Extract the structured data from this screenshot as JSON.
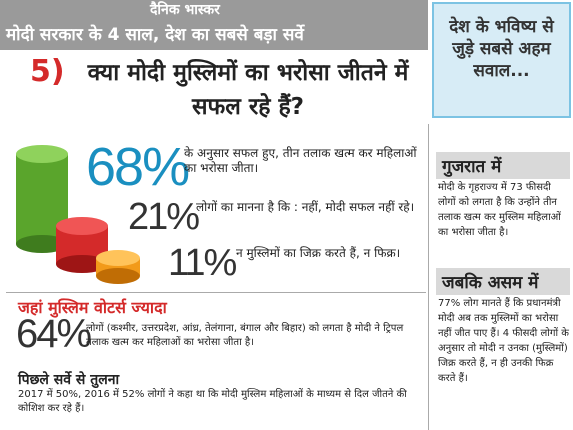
{
  "header": {
    "logo": "दैनिक भास्कर",
    "banner": "मोदी सरकार के 4 साल, देश का सबसे बड़ा सर्वे"
  },
  "sidebar_box": {
    "text": "देश के भविष्य से जुड़े सबसे अहम सवाल..."
  },
  "question": {
    "number": "5)",
    "text": "क्या मोदी मुस्लिमों का भरोसा जीतने में सफल रहे हैं?"
  },
  "stats": [
    {
      "value": "68%",
      "text": "के अनुसार सफल हुए, तीन तलाक खत्म कर महिलाओं का भरोसा जीता।"
    },
    {
      "value": "21%",
      "text": "लोगों का मानना है कि : नहीं, मोदी सफल नहीं रहे।"
    },
    {
      "value": "11%",
      "text": "न मुस्लिमों का जिक्र करते हैं, न फिक्र।"
    }
  ],
  "muslim_voters": {
    "heading": "जहां मुस्लिम वोटर्स ज्यादा",
    "value": "64%",
    "text": "लोगों (कश्मीर, उत्तरप्रदेश, आंध्र, तेलंगाना, बंगाल और बिहार) को लगता है मोदी ने ट्रिपल तलाक खत्म कर महिलाओं का भरोसा जीता है।"
  },
  "comparison": {
    "heading": "पिछले सर्वे से तुलना",
    "text": "2017 में 50%, 2016 में 52% लोगों ने कहा था कि मोदी मुस्लिम महिलाओं के माध्यम से दिल जीतने की कोशिश कर रहे हैं।"
  },
  "gujarat": {
    "heading": "गुजरात में",
    "text": "मोदी के गृहराज्य में 73 फीसदी लोगों को लगता है कि उन्होंने तीन तलाक खत्म कर मुस्लिम महिलाओं का भरोसा जीता है।"
  },
  "assam": {
    "heading": "जबकि असम में",
    "text": "77% लोग मानते हैं कि प्रधानमंत्री मोदी अब तक मुस्लिमों का भरोसा नहीं जीत पाए हैं। 4 फीसदी लोगों के अनुसार तो मोदी न उनका (मुस्लिमों) जिक्र करते हैं, न ही उनकी फिक्र करते हैं।"
  }
}
